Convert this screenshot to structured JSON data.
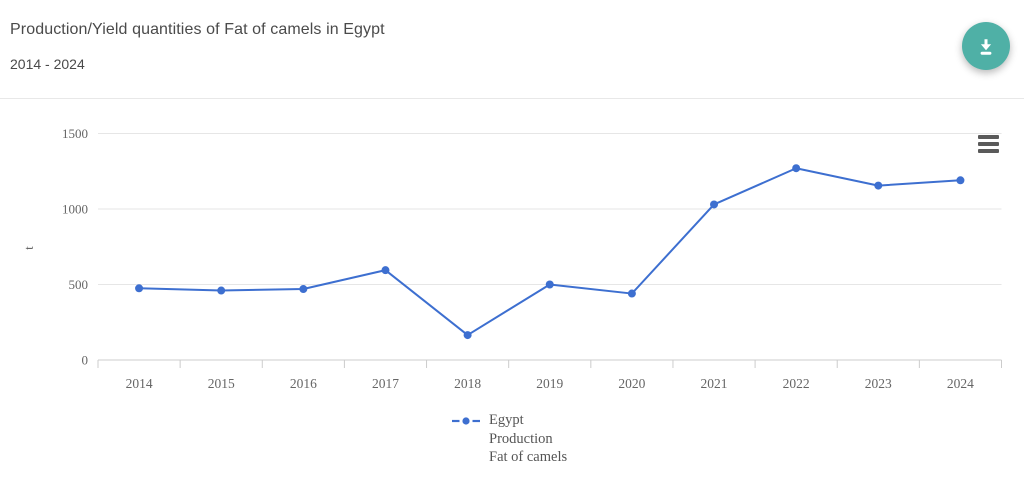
{
  "header": {
    "title": "Production/Yield quantities of Fat of camels in Egypt",
    "subtitle": "2014 - 2024"
  },
  "icons": {
    "download": "download-icon",
    "context_menu": "hamburger-menu-icon",
    "legend_marker": "legend-series-marker-icon"
  },
  "colors": {
    "accent_teal": "#4fb0a6",
    "series_blue": "#3d6fd0",
    "gridline": "#e6e6e6",
    "axis_line": "#cccccc",
    "axis_text": "#666666",
    "legend_text": "#555555",
    "title_text": "#4a4a4a",
    "menu_icon": "#5a5a5a"
  },
  "chart_data": {
    "type": "line",
    "title": "Production/Yield quantities of Fat of camels in Egypt",
    "subtitle": "2014 - 2024",
    "x": [
      "2014",
      "2015",
      "2016",
      "2017",
      "2018",
      "2019",
      "2020",
      "2021",
      "2022",
      "2023",
      "2024"
    ],
    "series": [
      {
        "name": "Egypt Production Fat of camels",
        "color": "#3d6fd0",
        "values": [
          475,
          460,
          470,
          595,
          165,
          500,
          440,
          1030,
          1270,
          1155,
          1190
        ]
      }
    ],
    "xlabel": "",
    "ylabel": "t",
    "ylim": [
      0,
      1500
    ],
    "yticks": [
      0,
      500,
      1000,
      1500
    ],
    "grid": "horizontal-only",
    "marker": "circle",
    "legend_position": "bottom-center",
    "legend_lines": [
      "Egypt",
      "Production",
      "Fat of camels"
    ]
  }
}
